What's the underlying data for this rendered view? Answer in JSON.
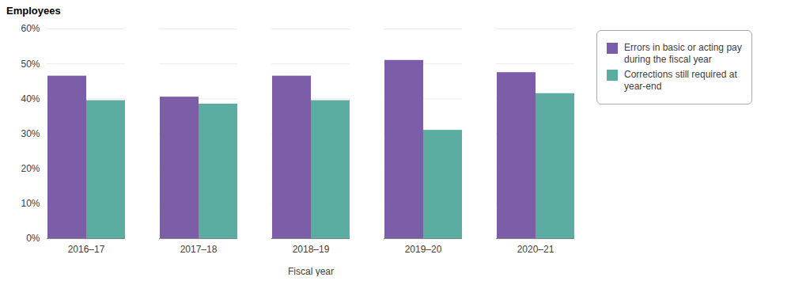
{
  "chart_data": {
    "type": "bar",
    "categories": [
      "2016–17",
      "2017–18",
      "2018–19",
      "2019–20",
      "2020–21"
    ],
    "series": [
      {
        "name": "Errors in basic or acting pay\nduring the fiscal year",
        "color": "#7B5EA7",
        "values": [
          46.5,
          40.5,
          46.5,
          51.0,
          47.5
        ]
      },
      {
        "name": "Corrections still required at\nyear-end",
        "color": "#5AADA0",
        "values": [
          39.5,
          38.5,
          39.5,
          31.0,
          41.5
        ]
      }
    ],
    "xlabel": "Fiscal year",
    "ylabel": "Employees",
    "ylim": [
      0,
      60
    ],
    "yticks": [
      {
        "value": 0,
        "label": "0%"
      },
      {
        "value": 10,
        "label": "10%"
      },
      {
        "value": 20,
        "label": "20%"
      },
      {
        "value": 30,
        "label": "30%"
      },
      {
        "value": 40,
        "label": "40%"
      },
      {
        "value": 50,
        "label": "50%"
      },
      {
        "value": 60,
        "label": "60%"
      }
    ],
    "grid": true,
    "legend": "right"
  }
}
